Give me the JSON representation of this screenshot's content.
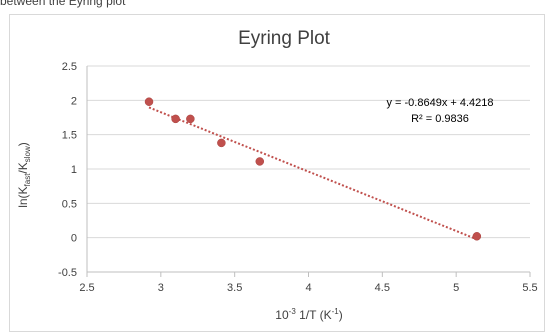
{
  "page": {
    "caption": "between the Eyring plot"
  },
  "chart_data": {
    "type": "scatter",
    "title": "Eyring Plot",
    "xlabel": {
      "base": "10",
      "base_sup": "-3",
      "rest": " 1/T (K",
      "rest_sup": "-1",
      "end": ")"
    },
    "ylabel": {
      "pre": "ln(K",
      "sub1": "fast",
      "mid": "/K",
      "sub2": "slow",
      "end": ")"
    },
    "xlim": [
      2.5,
      5.5
    ],
    "ylim": [
      -0.5,
      2.5
    ],
    "xticks": [
      2.5,
      3,
      3.5,
      4,
      4.5,
      5,
      5.5
    ],
    "xtick_labels": [
      "2.5",
      "3",
      "3.5",
      "4",
      "4.5",
      "5",
      "5.5"
    ],
    "yticks": [
      -0.5,
      0,
      0.5,
      1,
      1.5,
      2,
      2.5
    ],
    "ytick_labels": [
      "-0.5",
      "0",
      "0.5",
      "1",
      "1.5",
      "2",
      "2.5"
    ],
    "grid": "horizontal",
    "series": [
      {
        "color": "#c0504d",
        "points": [
          {
            "x": 2.92,
            "y": 1.98
          },
          {
            "x": 3.1,
            "y": 1.73
          },
          {
            "x": 3.2,
            "y": 1.73
          },
          {
            "x": 3.41,
            "y": 1.38
          },
          {
            "x": 3.67,
            "y": 1.11
          },
          {
            "x": 5.14,
            "y": 0.02
          }
        ]
      }
    ],
    "trendline": {
      "slope": -0.8649,
      "intercept": 4.4218,
      "x_from": 2.92,
      "x_to": 5.14,
      "color": "#c0504d",
      "style": "dotted"
    },
    "annotations": {
      "equation": "y = -0.8649x + 4.4218",
      "r2": "R² = 0.9836"
    }
  }
}
